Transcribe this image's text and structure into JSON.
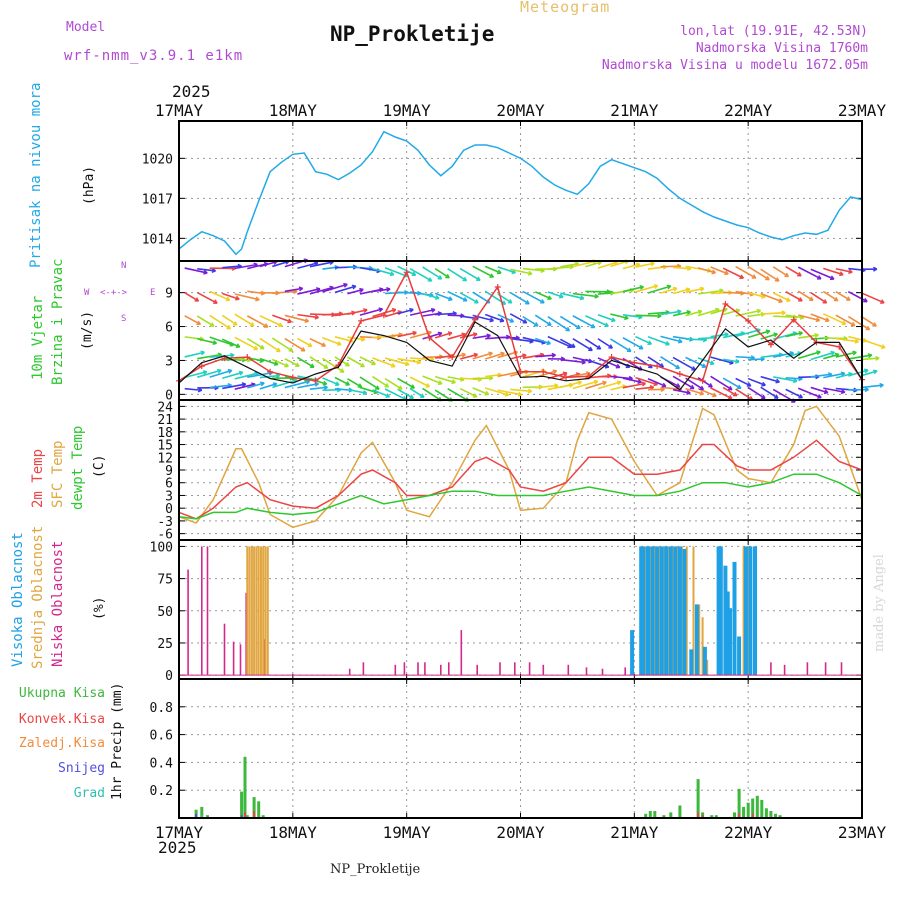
{
  "header": {
    "model_label": "Model",
    "model_name": "wrf-nmm_v3.9.1 e1km",
    "title": "NP_Prokletije",
    "product": "Meteogram",
    "lonlat": "lon,lat (19.91E, 42.53N)",
    "elevation": "Nadmorska Visina 1760m",
    "model_elevation": "Nadmorska Visina u modelu 1672.05m",
    "year_top": "2025",
    "year_bottom": "2025",
    "footer": "NP_Prokletije",
    "credit": "made by Angel"
  },
  "colors": {
    "pressure": "#22a9e8",
    "t2m": "#ec4444",
    "sfc": "#e0a640",
    "dewpoint": "#2ec82e",
    "cloud_high": "#1ea0e6",
    "cloud_mid": "#e0a640",
    "cloud_low": "#d4288c",
    "precip_total": "#3cb83c",
    "precip_conv": "#ec4444",
    "precip_frozen": "#f28c3c",
    "snow": "#5050e0",
    "graupel": "#30c0b0",
    "wind_speed": "#111111",
    "gust": "#e83c3c",
    "label_purple": "#b04ad0"
  },
  "chart_data": [
    {
      "id": "pressure",
      "type": "line",
      "x_ticks": [
        "17MAY",
        "18MAY",
        "19MAY",
        "20MAY",
        "21MAY",
        "22MAY",
        "23MAY"
      ],
      "ylabel": "(hPa)",
      "side_label": "Pritisak na nivou mora",
      "ylim": [
        1012.3,
        1022.8
      ],
      "y_ticks": [
        1014,
        1017,
        1020
      ],
      "grid": true,
      "series": [
        {
          "key": "pressure",
          "x": [
            0,
            0.1,
            0.2,
            0.3,
            0.4,
            0.5,
            0.55,
            0.6,
            0.7,
            0.8,
            0.9,
            1.0,
            1.1,
            1.2,
            1.3,
            1.4,
            1.5,
            1.6,
            1.7,
            1.8,
            1.9,
            2.0,
            2.1,
            2.2,
            2.3,
            2.4,
            2.5,
            2.6,
            2.7,
            2.8,
            2.9,
            3.0,
            3.1,
            3.2,
            3.3,
            3.4,
            3.5,
            3.6,
            3.7,
            3.8,
            3.9,
            4.0,
            4.1,
            4.2,
            4.3,
            4.4,
            4.5,
            4.6,
            4.7,
            4.8,
            4.9,
            5.0,
            5.1,
            5.2,
            5.3,
            5.4,
            5.5,
            5.6,
            5.7,
            5.8,
            5.9,
            6.0
          ],
          "values": [
            1013.2,
            1013.9,
            1014.5,
            1014.2,
            1013.8,
            1012.8,
            1013.2,
            1014.5,
            1016.8,
            1019.0,
            1019.7,
            1020.3,
            1020.4,
            1019.0,
            1018.8,
            1018.4,
            1018.9,
            1019.5,
            1020.5,
            1022.0,
            1021.6,
            1021.3,
            1020.6,
            1019.5,
            1018.7,
            1019.4,
            1020.6,
            1021.0,
            1021.0,
            1020.8,
            1020.4,
            1020.0,
            1019.4,
            1018.6,
            1018.0,
            1017.6,
            1017.3,
            1018.1,
            1019.4,
            1019.9,
            1019.6,
            1019.3,
            1019.0,
            1018.5,
            1017.7,
            1017.0,
            1016.5,
            1016.0,
            1015.6,
            1015.3,
            1015.0,
            1014.8,
            1014.4,
            1014.1,
            1013.9,
            1014.2,
            1014.4,
            1014.3,
            1014.6,
            1016.1,
            1017.1,
            1016.9
          ]
        }
      ]
    },
    {
      "id": "wind",
      "type": "line",
      "ylabel": "(m/s)",
      "side_label_1": "10m Vjetar",
      "side_label_2": "Brzina i Pravac",
      "compass_n": "N",
      "compass_s": "S",
      "compass_e": "E",
      "compass_w": "W",
      "ylim": [
        -0.5,
        11.8
      ],
      "y_ticks": [
        0,
        3,
        6,
        9
      ],
      "grid": true,
      "series": [
        {
          "key": "gust",
          "x": [
            0,
            0.2,
            0.4,
            0.6,
            0.8,
            1.0,
            1.2,
            1.4,
            1.6,
            1.8,
            2.0,
            2.2,
            2.4,
            2.6,
            2.8,
            3.0,
            3.2,
            3.4,
            3.6,
            3.8,
            4.0,
            4.2,
            4.4,
            4.6,
            4.8,
            5.0,
            5.2,
            5.4,
            5.6,
            5.8,
            6.0
          ],
          "values": [
            1.2,
            2.5,
            3.2,
            3.3,
            2.0,
            1.5,
            1.2,
            2.6,
            6.5,
            7.0,
            10.8,
            5.0,
            3.3,
            6.6,
            9.5,
            2.0,
            2.0,
            1.5,
            1.6,
            3.3,
            2.8,
            2.5,
            1.8,
            1.2,
            8.0,
            6.5,
            4.4,
            6.6,
            4.6,
            4.2,
            1.3
          ]
        },
        {
          "key": "wind_speed",
          "x": [
            0,
            0.2,
            0.4,
            0.6,
            0.8,
            1.0,
            1.2,
            1.4,
            1.6,
            1.8,
            2.0,
            2.2,
            2.4,
            2.6,
            2.8,
            3.0,
            3.2,
            3.4,
            3.6,
            3.8,
            4.0,
            4.2,
            4.4,
            4.6,
            4.8,
            5.0,
            5.2,
            5.4,
            5.6,
            5.8,
            6.0
          ],
          "values": [
            1.0,
            2.8,
            3.4,
            2.4,
            1.4,
            1.0,
            1.8,
            2.4,
            5.6,
            5.2,
            4.6,
            3.0,
            2.5,
            6.4,
            5.2,
            1.5,
            1.6,
            1.2,
            1.4,
            3.0,
            2.4,
            1.8,
            0.4,
            3.0,
            5.8,
            4.2,
            4.8,
            3.2,
            4.6,
            4.6,
            1.3
          ]
        }
      ]
    },
    {
      "id": "temperature",
      "type": "line",
      "ylabel": "(C)",
      "side_label_1": "2m Temp",
      "side_label_2": "SFC Temp",
      "side_label_3": "dewpt Temp",
      "ylim": [
        -7.5,
        25.5
      ],
      "y_ticks": [
        -6,
        -3,
        0,
        3,
        6,
        9,
        12,
        15,
        18,
        21,
        24
      ],
      "grid": true,
      "series": [
        {
          "key": "sfc",
          "x": [
            0,
            0.15,
            0.3,
            0.5,
            0.55,
            0.7,
            0.8,
            1.0,
            1.2,
            1.4,
            1.6,
            1.7,
            1.9,
            2.0,
            2.2,
            2.4,
            2.6,
            2.7,
            2.9,
            3.0,
            3.2,
            3.4,
            3.5,
            3.6,
            3.8,
            4.0,
            4.2,
            4.4,
            4.6,
            4.7,
            4.9,
            5.0,
            5.2,
            5.4,
            5.5,
            5.6,
            5.8,
            6.0
          ],
          "values": [
            -2,
            -3.5,
            2,
            14,
            14,
            6,
            -1.5,
            -4.5,
            -3,
            3,
            13,
            15.5,
            6,
            -0.5,
            -2,
            6,
            16,
            19.5,
            9,
            -0.5,
            0,
            6,
            16,
            22.5,
            21,
            11,
            3,
            6,
            23.5,
            22,
            9,
            7,
            6,
            15,
            23,
            24,
            17,
            2
          ]
        },
        {
          "key": "t2m",
          "x": [
            0,
            0.15,
            0.3,
            0.5,
            0.6,
            0.8,
            1.0,
            1.2,
            1.4,
            1.6,
            1.7,
            1.9,
            2.0,
            2.2,
            2.4,
            2.6,
            2.7,
            2.9,
            3.0,
            3.2,
            3.4,
            3.6,
            3.8,
            4.0,
            4.2,
            4.4,
            4.6,
            4.7,
            4.9,
            5.0,
            5.2,
            5.4,
            5.6,
            5.8,
            6.0
          ],
          "values": [
            -1,
            -2.5,
            0,
            5,
            6,
            2,
            0.5,
            0,
            3,
            8,
            9,
            6,
            3,
            3,
            5,
            11,
            12,
            9,
            5,
            4,
            6,
            12,
            12,
            8,
            8,
            9,
            15,
            15,
            10,
            9,
            9,
            12,
            16,
            11,
            9
          ]
        },
        {
          "key": "dewpoint",
          "x": [
            0,
            0.15,
            0.3,
            0.5,
            0.6,
            0.8,
            1.0,
            1.2,
            1.4,
            1.6,
            1.8,
            2.0,
            2.2,
            2.4,
            2.6,
            2.8,
            3.0,
            3.2,
            3.4,
            3.6,
            3.8,
            4.0,
            4.2,
            4.4,
            4.6,
            4.8,
            5.0,
            5.2,
            5.4,
            5.6,
            5.8,
            6.0
          ],
          "values": [
            -2,
            -2.5,
            -1,
            -1,
            0,
            -1,
            -1.5,
            -1,
            1,
            3,
            1,
            2,
            3,
            4,
            4,
            3,
            3,
            3,
            4,
            5,
            4,
            3,
            3,
            4,
            6,
            6,
            5,
            6,
            8,
            8,
            6,
            3
          ]
        }
      ]
    },
    {
      "id": "clouds",
      "type": "bar",
      "ylabel": "(%)",
      "side_label_1": "Visoka Oblacnost",
      "side_label_2": "Srednja Oblacnost",
      "side_label_3": "Niska Oblacnost",
      "ylim": [
        -3,
        105
      ],
      "y_ticks": [
        0,
        25,
        50,
        75,
        100
      ],
      "grid": true,
      "series": [
        {
          "key": "cloud_low",
          "x": [
            0.08,
            0.2,
            0.25,
            0.4,
            0.48,
            0.54,
            0.59,
            0.62,
            0.7,
            0.75,
            1.5,
            1.62,
            1.9,
            1.98,
            2.1,
            2.16,
            2.3,
            2.37,
            2.48,
            2.62,
            2.82,
            2.95,
            3.08,
            3.2,
            3.42,
            3.58,
            3.72,
            3.92,
            4.2,
            4.46,
            4.8,
            4.92,
            5.2,
            5.32,
            5.52,
            5.68,
            5.82
          ],
          "values": [
            82,
            100,
            100,
            40,
            26,
            24,
            64,
            90,
            34,
            28,
            5,
            10,
            8,
            10,
            10,
            10,
            8,
            10,
            35,
            8,
            10,
            10,
            10,
            8,
            8,
            6,
            5,
            6,
            10,
            8,
            12,
            8,
            10,
            8,
            10,
            10,
            10
          ]
        },
        {
          "key": "cloud_mid",
          "x": [
            0.6,
            0.62,
            0.64,
            0.66,
            0.68,
            0.7,
            0.72,
            0.74,
            0.76,
            0.78,
            4.1,
            4.14,
            4.18,
            4.22,
            4.26,
            4.3,
            4.34,
            4.38,
            4.42,
            4.46,
            4.52,
            4.57,
            4.6,
            4.64,
            4.96,
            5.0
          ],
          "values": [
            100,
            100,
            100,
            100,
            100,
            100,
            100,
            100,
            100,
            100,
            100,
            100,
            100,
            100,
            100,
            100,
            100,
            100,
            100,
            100,
            100,
            55,
            45,
            12,
            100,
            100
          ]
        },
        {
          "key": "cloud_high",
          "x": [
            3.98,
            4.06,
            4.08,
            4.12,
            4.16,
            4.2,
            4.24,
            4.28,
            4.32,
            4.36,
            4.4,
            4.44,
            4.5,
            4.55,
            4.62,
            4.74,
            4.76,
            4.8,
            4.82,
            4.84,
            4.88,
            4.92,
            4.98,
            5.02,
            5.06
          ],
          "values": [
            35,
            100,
            100,
            100,
            100,
            100,
            100,
            100,
            100,
            100,
            100,
            98,
            20,
            55,
            22,
            100,
            100,
            85,
            65,
            52,
            88,
            30,
            100,
            100,
            100
          ]
        }
      ]
    },
    {
      "id": "precip",
      "type": "bar",
      "ylabel": "1hr Precip (mm)",
      "legend": [
        "Ukupna Kisa",
        "Konvek.Kisa",
        "Zaledj.Kisa",
        "Snijeg",
        "Grad"
      ],
      "ylim": [
        0,
        1.0
      ],
      "y_ticks": [
        0.2,
        0.4,
        0.6,
        0.8
      ],
      "grid": true,
      "series": [
        {
          "key": "precip_total",
          "x": [
            0.15,
            0.2,
            0.25,
            0.55,
            0.58,
            0.6,
            0.66,
            0.7,
            0.74,
            4.1,
            4.14,
            4.18,
            4.26,
            4.32,
            4.4,
            4.56,
            4.6,
            4.68,
            4.72,
            4.88,
            4.92,
            4.96,
            5.0,
            5.04,
            5.08,
            5.12,
            5.16,
            5.2,
            5.24,
            5.28
          ],
          "values": [
            0.06,
            0.08,
            0.02,
            0.19,
            0.44,
            0.02,
            0.15,
            0.12,
            0.02,
            0.03,
            0.05,
            0.05,
            0.02,
            0.04,
            0.09,
            0.28,
            0.04,
            0.02,
            0.02,
            0.04,
            0.21,
            0.08,
            0.11,
            0.14,
            0.16,
            0.13,
            0.07,
            0.05,
            0.03,
            0.02
          ]
        },
        {
          "key": "precip_conv",
          "x": [
            0.58,
            0.66,
            4.56,
            4.6,
            4.92,
            5.04
          ],
          "values": [
            0.04,
            0.05,
            0.04,
            0.02,
            0.03,
            0.03
          ]
        },
        {
          "key": "snow",
          "x": [
            0.15,
            0.55
          ],
          "values": [
            0.03,
            0.02
          ]
        },
        {
          "key": "graupel",
          "x": [
            0.2,
            4.14
          ],
          "values": [
            0.02,
            0.01
          ]
        }
      ]
    }
  ]
}
